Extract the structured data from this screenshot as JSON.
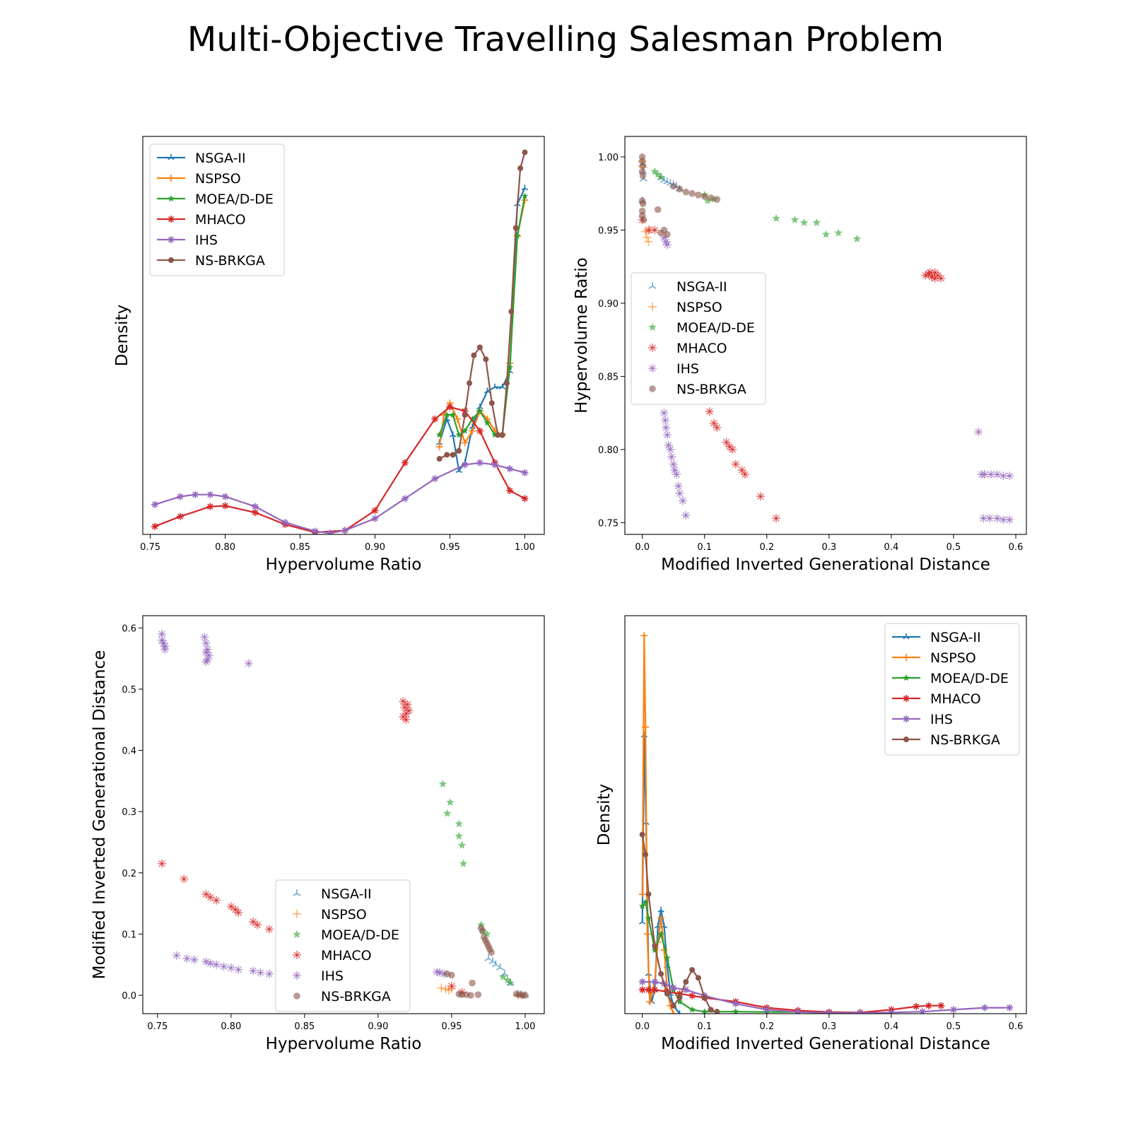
{
  "figure": {
    "title": "Multi-Objective Travelling Salesman Problem"
  },
  "algorithms": [
    {
      "name": "NSGA-II",
      "color": "#1f77b4",
      "marker": "tri-up"
    },
    {
      "name": "NSPSO",
      "color": "#ff7f0e",
      "marker": "plus"
    },
    {
      "name": "MOEA/D-DE",
      "color": "#2ca02c",
      "marker": "star"
    },
    {
      "name": "MHACO",
      "color": "#d62728",
      "marker": "asterisk"
    },
    {
      "name": "IHS",
      "color": "#9467bd",
      "marker": "asterisk"
    },
    {
      "name": "NS-BRKGA",
      "color": "#8c564b",
      "marker": "hexagon"
    }
  ],
  "chart_data": [
    {
      "id": "kde-hv",
      "type": "line",
      "xlabel": "Hypervolume Ratio",
      "ylabel": "Density",
      "xlim": [
        0.745,
        1.013
      ],
      "ylim": [
        0.0,
        1.0
      ],
      "xticks": [
        "0.75",
        "0.80",
        "0.85",
        "0.90",
        "0.95",
        "1.00"
      ],
      "yticks": [],
      "legend": "upper-left",
      "series": [
        {
          "name": "NSGA-II",
          "x": [
            0.943,
            0.948,
            0.952,
            0.956,
            0.96,
            0.965,
            0.97,
            0.975,
            0.98,
            0.985,
            0.99,
            0.995,
            1.0
          ],
          "y": [
            0.23,
            0.29,
            0.25,
            0.16,
            0.18,
            0.27,
            0.32,
            0.36,
            0.37,
            0.37,
            0.41,
            0.83,
            0.87
          ]
        },
        {
          "name": "NSPSO",
          "x": [
            0.943,
            0.946,
            0.95,
            0.955,
            0.96,
            0.965,
            0.97,
            0.975,
            0.98,
            0.985,
            0.99,
            0.995,
            1.0
          ],
          "y": [
            0.22,
            0.3,
            0.33,
            0.29,
            0.23,
            0.26,
            0.31,
            0.29,
            0.26,
            0.25,
            0.43,
            0.75,
            0.84
          ]
        },
        {
          "name": "MOEA/D-DE",
          "x": [
            0.943,
            0.948,
            0.952,
            0.956,
            0.96,
            0.965,
            0.97,
            0.975,
            0.98,
            0.985,
            0.99,
            0.995,
            1.0
          ],
          "y": [
            0.25,
            0.3,
            0.3,
            0.25,
            0.26,
            0.29,
            0.31,
            0.28,
            0.25,
            0.25,
            0.42,
            0.75,
            0.85
          ]
        },
        {
          "name": "MHACO",
          "x": [
            0.753,
            0.77,
            0.79,
            0.8,
            0.82,
            0.84,
            0.86,
            0.88,
            0.9,
            0.92,
            0.94,
            0.95,
            0.96,
            0.97,
            0.98,
            0.99,
            1.0
          ],
          "y": [
            0.02,
            0.045,
            0.07,
            0.072,
            0.055,
            0.025,
            0.005,
            0.01,
            0.06,
            0.18,
            0.29,
            0.32,
            0.31,
            0.26,
            0.18,
            0.11,
            0.09
          ]
        },
        {
          "name": "IHS",
          "x": [
            0.753,
            0.77,
            0.78,
            0.79,
            0.8,
            0.82,
            0.84,
            0.86,
            0.87,
            0.88,
            0.9,
            0.92,
            0.94,
            0.96,
            0.97,
            0.98,
            0.99,
            1.0
          ],
          "y": [
            0.075,
            0.095,
            0.1,
            0.1,
            0.095,
            0.07,
            0.03,
            0.008,
            0.003,
            0.01,
            0.04,
            0.09,
            0.14,
            0.175,
            0.18,
            0.175,
            0.165,
            0.155
          ]
        },
        {
          "name": "NS-BRKGA",
          "x": [
            0.943,
            0.948,
            0.952,
            0.956,
            0.96,
            0.963,
            0.966,
            0.97,
            0.974,
            0.978,
            0.982,
            0.985,
            0.988,
            0.991,
            0.994,
            0.997,
            1.0
          ],
          "y": [
            0.19,
            0.2,
            0.2,
            0.21,
            0.3,
            0.38,
            0.45,
            0.47,
            0.44,
            0.33,
            0.25,
            0.25,
            0.38,
            0.56,
            0.77,
            0.92,
            0.96
          ]
        }
      ]
    },
    {
      "id": "scatter-migd-hv",
      "type": "scatter",
      "xlabel": "Modified Inverted Generational Distance",
      "ylabel": "Hypervolume Ratio",
      "xlim": [
        -0.028,
        0.617
      ],
      "ylim": [
        0.742,
        1.014
      ],
      "xticks": [
        0.0,
        0.1,
        0.2,
        0.3,
        0.4,
        0.5,
        0.6
      ],
      "yticks": [
        0.75,
        0.8,
        0.85,
        0.9,
        0.95,
        1.0
      ],
      "xtick_labels": [
        "0.0",
        "0.1",
        "0.2",
        "0.3",
        "0.4",
        "0.5",
        "0.6"
      ],
      "ytick_labels": [
        "0.75",
        "0.80",
        "0.85",
        "0.90",
        "0.95",
        "1.00"
      ],
      "legend": "center-left",
      "series": [
        {
          "name": "NSGA-II",
          "x": [
            0.0,
            0.001,
            0.002,
            0.0,
            0.03,
            0.035,
            0.04,
            0.045,
            0.05,
            0.055,
            0.06
          ],
          "y": [
            0.995,
            0.99,
            0.985,
            0.97,
            0.986,
            0.984,
            0.983,
            0.982,
            0.981,
            0.98,
            0.978
          ]
        },
        {
          "name": "NSPSO",
          "x": [
            0.005,
            0.007,
            0.01,
            0.012,
            0.0,
            0.001
          ],
          "y": [
            0.949,
            0.945,
            0.942,
            0.95,
            0.997,
            0.993
          ]
        },
        {
          "name": "MOEA/D-DE",
          "x": [
            0.02,
            0.025,
            0.03,
            0.1,
            0.105,
            0.115,
            0.215,
            0.245,
            0.26,
            0.28,
            0.295,
            0.315,
            0.345
          ],
          "y": [
            0.99,
            0.988,
            0.986,
            0.974,
            0.97,
            0.971,
            0.958,
            0.957,
            0.955,
            0.955,
            0.947,
            0.948,
            0.944
          ]
        },
        {
          "name": "MHACO",
          "x": [
            0.0,
            0.02,
            0.01,
            0.108,
            0.115,
            0.12,
            0.135,
            0.14,
            0.145,
            0.15,
            0.16,
            0.165,
            0.19,
            0.215,
            0.455,
            0.46,
            0.465,
            0.47,
            0.475,
            0.48,
            0.462,
            0.47
          ],
          "y": [
            0.957,
            0.95,
            0.95,
            0.826,
            0.818,
            0.815,
            0.805,
            0.802,
            0.8,
            0.79,
            0.786,
            0.783,
            0.768,
            0.753,
            0.919,
            0.92,
            0.918,
            0.917,
            0.919,
            0.917,
            0.921,
            0.921
          ]
        },
        {
          "name": "IHS",
          "x": [
            0.035,
            0.037,
            0.038,
            0.04,
            0.042,
            0.045,
            0.047,
            0.05,
            0.052,
            0.055,
            0.058,
            0.06,
            0.065,
            0.07,
            0.035,
            0.038,
            0.04,
            0.54,
            0.545,
            0.55,
            0.56,
            0.57,
            0.58,
            0.59,
            0.548,
            0.558,
            0.57,
            0.58,
            0.59
          ],
          "y": [
            0.825,
            0.82,
            0.815,
            0.81,
            0.803,
            0.8,
            0.795,
            0.79,
            0.786,
            0.783,
            0.775,
            0.77,
            0.765,
            0.755,
            0.945,
            0.942,
            0.94,
            0.812,
            0.783,
            0.783,
            0.783,
            0.783,
            0.782,
            0.782,
            0.753,
            0.753,
            0.753,
            0.752,
            0.752
          ]
        },
        {
          "name": "NS-BRKGA",
          "x": [
            0.0,
            0.0,
            0.001,
            0.0,
            0.001,
            0.0,
            0.001,
            0.0,
            0.002,
            0.0,
            0.025,
            0.035,
            0.04,
            0.05,
            0.06,
            0.07,
            0.08,
            0.09,
            0.1,
            0.11,
            0.12,
            0.03
          ],
          "y": [
            1.0,
            0.997,
            0.994,
            0.99,
            0.987,
            0.97,
            0.968,
            0.96,
            0.957,
            0.963,
            0.964,
            0.95,
            0.947,
            0.98,
            0.978,
            0.976,
            0.975,
            0.974,
            0.973,
            0.972,
            0.971,
            0.948
          ]
        }
      ]
    },
    {
      "id": "scatter-hv-migd",
      "type": "scatter",
      "xlabel": "Hypervolume Ratio",
      "ylabel": "Modified Inverted Generational Distance",
      "xlim": [
        0.74,
        1.013
      ],
      "ylim": [
        -0.03,
        0.62
      ],
      "xticks": [
        0.75,
        0.8,
        0.85,
        0.9,
        0.95,
        1.0
      ],
      "yticks": [
        0.0,
        0.1,
        0.2,
        0.3,
        0.4,
        0.5,
        0.6
      ],
      "xtick_labels": [
        "0.75",
        "0.80",
        "0.85",
        "0.90",
        "0.95",
        "1.00"
      ],
      "ytick_labels": [
        "0.0",
        "0.1",
        "0.2",
        "0.3",
        "0.4",
        "0.5",
        "0.6"
      ],
      "legend": "lower-center",
      "series": [
        {
          "name": "NSGA-II",
          "x": [
            0.975,
            0.978,
            0.98,
            0.983,
            0.986,
            0.99,
            0.995,
            0.997,
            1.0
          ],
          "y": [
            0.06,
            0.055,
            0.05,
            0.045,
            0.035,
            0.02,
            0.002,
            0.001,
            0.0
          ]
        },
        {
          "name": "NSPSO",
          "x": [
            0.943,
            0.946,
            0.948,
            0.95,
            0.995,
            0.998
          ],
          "y": [
            0.012,
            0.01,
            0.008,
            0.011,
            0.0,
            0.001
          ]
        },
        {
          "name": "MOEA/D-DE",
          "x": [
            0.944,
            0.947,
            0.949,
            0.955,
            0.955,
            0.957,
            0.958,
            0.97,
            0.971,
            0.974,
            0.985,
            0.988,
            0.99
          ],
          "y": [
            0.345,
            0.297,
            0.315,
            0.28,
            0.26,
            0.245,
            0.215,
            0.115,
            0.105,
            0.1,
            0.03,
            0.025,
            0.02
          ]
        },
        {
          "name": "MHACO",
          "x": [
            0.753,
            0.768,
            0.783,
            0.786,
            0.79,
            0.8,
            0.803,
            0.805,
            0.815,
            0.818,
            0.826,
            0.95,
            0.957,
            0.917,
            0.918,
            0.919,
            0.92,
            0.921,
            0.917,
            0.919
          ],
          "y": [
            0.215,
            0.19,
            0.165,
            0.16,
            0.155,
            0.145,
            0.14,
            0.135,
            0.12,
            0.115,
            0.108,
            0.015,
            0.005,
            0.48,
            0.47,
            0.46,
            0.475,
            0.465,
            0.455,
            0.45
          ]
        },
        {
          "name": "IHS",
          "x": [
            0.753,
            0.753,
            0.754,
            0.755,
            0.755,
            0.763,
            0.77,
            0.775,
            0.783,
            0.786,
            0.79,
            0.795,
            0.8,
            0.805,
            0.812,
            0.815,
            0.82,
            0.826,
            0.782,
            0.783,
            0.784,
            0.785,
            0.784,
            0.783,
            0.783,
            0.94,
            0.942,
            0.945
          ],
          "y": [
            0.59,
            0.58,
            0.575,
            0.57,
            0.565,
            0.065,
            0.06,
            0.058,
            0.055,
            0.052,
            0.05,
            0.047,
            0.045,
            0.042,
            0.542,
            0.04,
            0.037,
            0.035,
            0.585,
            0.575,
            0.565,
            0.555,
            0.548,
            0.56,
            0.545,
            0.038,
            0.037,
            0.035
          ]
        },
        {
          "name": "NS-BRKGA",
          "x": [
            0.947,
            0.95,
            0.955,
            0.957,
            0.96,
            0.963,
            0.968,
            0.97,
            0.971,
            0.972,
            0.973,
            0.974,
            0.975,
            0.976,
            0.977,
            0.994,
            0.996,
            0.998,
            1.0,
            0.964
          ],
          "y": [
            0.035,
            0.033,
            0.002,
            0.001,
            0.001,
            0.0,
            0.001,
            0.11,
            0.105,
            0.095,
            0.09,
            0.085,
            0.08,
            0.075,
            0.07,
            0.002,
            0.001,
            0.0,
            0.0,
            0.02
          ]
        }
      ]
    },
    {
      "id": "kde-migd",
      "type": "line",
      "xlabel": "Modified Inverted Generational Distance",
      "ylabel": "Density",
      "xlim": [
        -0.028,
        0.617
      ],
      "ylim": [
        0.0,
        1.0
      ],
      "xticks": [
        "0.0",
        "0.1",
        "0.2",
        "0.3",
        "0.4",
        "0.5",
        "0.6"
      ],
      "yticks": [],
      "legend": "upper-right",
      "series": [
        {
          "name": "NSGA-II",
          "x": [
            0.0,
            0.003,
            0.006,
            0.01,
            0.015,
            0.02,
            0.025,
            0.03,
            0.035,
            0.04,
            0.045,
            0.05,
            0.06
          ],
          "y": [
            0.23,
            0.7,
            0.48,
            0.1,
            0.03,
            0.06,
            0.22,
            0.26,
            0.22,
            0.12,
            0.05,
            0.02,
            0.0
          ]
        },
        {
          "name": "NSPSO",
          "x": [
            0.0,
            0.003,
            0.005,
            0.008,
            0.012,
            0.015,
            0.02,
            0.025,
            0.03,
            0.035,
            0.04,
            0.045,
            0.05
          ],
          "y": [
            0.3,
            0.95,
            0.72,
            0.2,
            0.03,
            0.05,
            0.08,
            0.18,
            0.24,
            0.16,
            0.06,
            0.02,
            0.0
          ]
        },
        {
          "name": "MOEA/D-DE",
          "x": [
            0.0,
            0.005,
            0.01,
            0.02,
            0.03,
            0.04,
            0.05,
            0.06,
            0.08,
            0.1,
            0.15,
            0.2,
            0.25,
            0.3,
            0.35
          ],
          "y": [
            0.27,
            0.28,
            0.24,
            0.16,
            0.2,
            0.14,
            0.06,
            0.03,
            0.01,
            0.005,
            0.005,
            0.004,
            0.004,
            0.003,
            0.002
          ]
        },
        {
          "name": "MHACO",
          "x": [
            0.0,
            0.01,
            0.02,
            0.04,
            0.06,
            0.08,
            0.1,
            0.15,
            0.2,
            0.25,
            0.3,
            0.35,
            0.4,
            0.44,
            0.46,
            0.48
          ],
          "y": [
            0.06,
            0.06,
            0.06,
            0.055,
            0.05,
            0.045,
            0.04,
            0.03,
            0.015,
            0.008,
            0.004,
            0.003,
            0.01,
            0.018,
            0.02,
            0.02
          ]
        },
        {
          "name": "IHS",
          "x": [
            0.0,
            0.02,
            0.035,
            0.05,
            0.07,
            0.1,
            0.15,
            0.2,
            0.25,
            0.3,
            0.35,
            0.4,
            0.45,
            0.5,
            0.55,
            0.59
          ],
          "y": [
            0.08,
            0.08,
            0.075,
            0.065,
            0.06,
            0.045,
            0.025,
            0.01,
            0.004,
            0.002,
            0.002,
            0.003,
            0.005,
            0.01,
            0.015,
            0.015
          ]
        },
        {
          "name": "NS-BRKGA",
          "x": [
            0.0,
            0.005,
            0.01,
            0.02,
            0.03,
            0.04,
            0.05,
            0.06,
            0.07,
            0.08,
            0.09,
            0.1,
            0.11,
            0.12
          ],
          "y": [
            0.45,
            0.4,
            0.3,
            0.17,
            0.1,
            0.05,
            0.02,
            0.04,
            0.08,
            0.11,
            0.09,
            0.04,
            0.01,
            0.005
          ]
        }
      ]
    }
  ]
}
